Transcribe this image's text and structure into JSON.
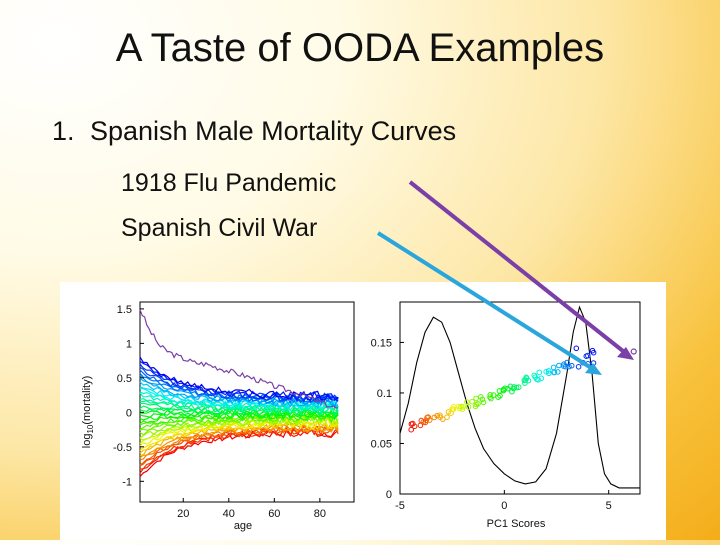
{
  "slide": {
    "title": "A Taste of OODA Examples",
    "item_number": "1.",
    "item_text": "Spanish Male Mortality Curves",
    "sub_items": [
      "1918 Flu Pandemic",
      "Spanish Civil War"
    ]
  },
  "colors": {
    "flu_arrow": "#7b3fa8",
    "war_arrow": "#2aa6dc",
    "background_center": "#ffffff",
    "background_edge": "#f4ad1a"
  },
  "chart_data": [
    {
      "type": "line",
      "title": "",
      "xlabel": "age",
      "ylabel": "log10(mortality)",
      "ylabel_parts": {
        "base": "log",
        "sub": "10",
        "rest": "(mortality)"
      },
      "xlim": [
        1,
        95
      ],
      "ylim": [
        -1.3,
        1.6
      ],
      "xticks": [
        "20",
        "40",
        "60",
        "80"
      ],
      "xtick_values": [
        20,
        40,
        60,
        80
      ],
      "yticks": [
        "-1",
        "-0.5",
        "0",
        "0.5",
        "1",
        "1.5"
      ],
      "ytick_values": [
        -1,
        -0.5,
        0,
        0.5,
        1,
        1.5
      ],
      "series_description": "many centered mortality curves colored by PC1 score (red to blue rainbow), plus one purple outlier curve",
      "outlier_curve": {
        "x": [
          1,
          5,
          10,
          15,
          20,
          25,
          30,
          40,
          50,
          60,
          70,
          80,
          88
        ],
        "y": [
          1.5,
          1.2,
          0.95,
          0.85,
          0.78,
          0.72,
          0.7,
          0.6,
          0.5,
          0.38,
          0.28,
          0.15,
          0.05
        ]
      }
    },
    {
      "type": "scatter",
      "title": "",
      "xlabel": "PC1 Scores",
      "ylabel": "",
      "xlim": [
        -5,
        6.5
      ],
      "ylim": [
        0,
        0.19
      ],
      "xticks": [
        "-5",
        "0",
        "5"
      ],
      "xtick_values": [
        -5,
        0,
        5
      ],
      "yticks": [
        "0",
        "0.05",
        "0.1",
        "0.15"
      ],
      "ytick_values": [
        0,
        0.05,
        0.1,
        0.15
      ],
      "density_curve": {
        "x": [
          -5,
          -4.6,
          -4.2,
          -3.8,
          -3.4,
          -3.0,
          -2.6,
          -2.2,
          -1.8,
          -1.4,
          -1.0,
          -0.5,
          0,
          0.5,
          1.0,
          1.5,
          2.0,
          2.5,
          3.0,
          3.3,
          3.6,
          3.9,
          4.2,
          4.5,
          4.8,
          5.1,
          5.5,
          6.0,
          6.5
        ],
        "y": [
          0.06,
          0.09,
          0.13,
          0.16,
          0.175,
          0.17,
          0.15,
          0.12,
          0.09,
          0.065,
          0.045,
          0.03,
          0.02,
          0.013,
          0.01,
          0.012,
          0.025,
          0.06,
          0.12,
          0.16,
          0.185,
          0.17,
          0.12,
          0.05,
          0.02,
          0.01,
          0.006,
          0.006,
          0.006
        ]
      },
      "points_description": "jittered PC1 scores colored by year, red (left) through blue (right)",
      "flu_outlier_point": {
        "x": 6.2,
        "y": 0.141
      }
    }
  ]
}
